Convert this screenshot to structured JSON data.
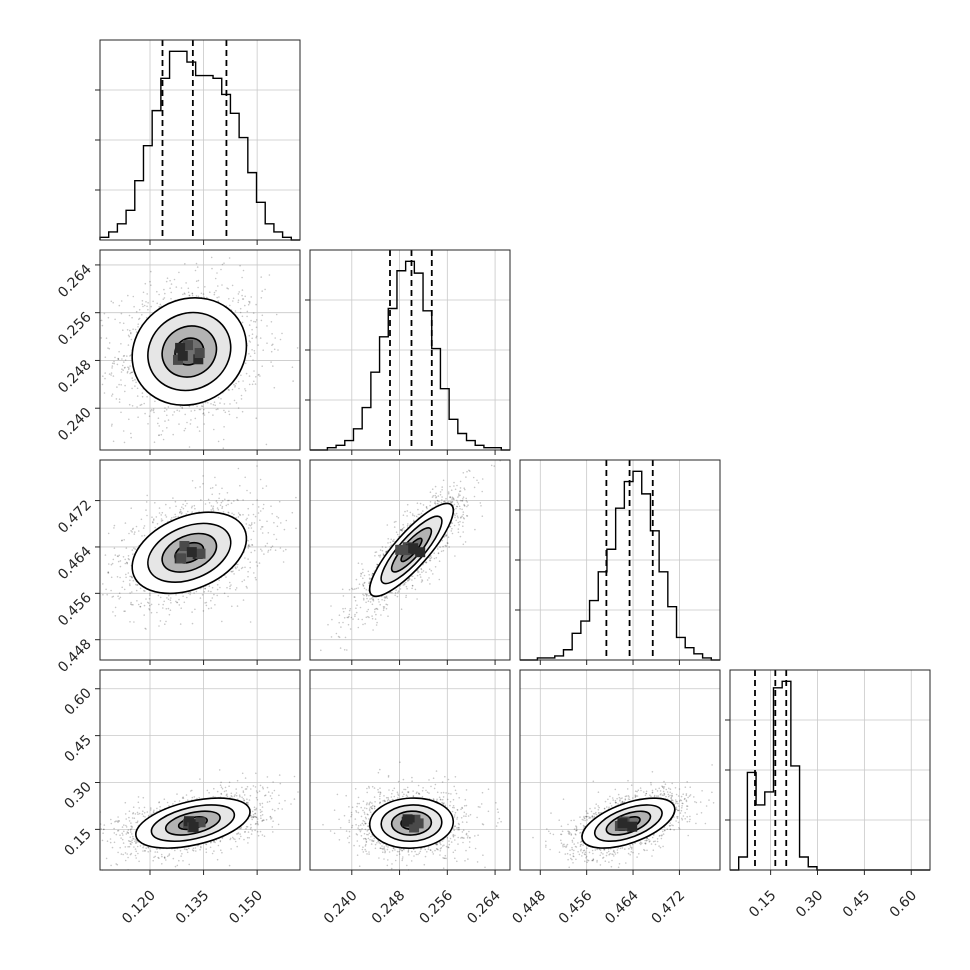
{
  "chart_data": {
    "type": "corner",
    "parameters": [
      {
        "range": [
          0.106,
          0.162
        ],
        "ticks": [
          0.12,
          0.135,
          0.15
        ],
        "tick_labels": [
          "0.120",
          "0.135",
          "0.150"
        ],
        "quantiles": [
          0.1235,
          0.132,
          0.1414
        ]
      },
      {
        "range": [
          0.233,
          0.2665
        ],
        "ticks": [
          0.24,
          0.248,
          0.256,
          0.264
        ],
        "tick_labels": [
          "0.240",
          "0.248",
          "0.256",
          "0.264"
        ],
        "quantiles": [
          0.2464,
          0.25,
          0.2534
        ]
      },
      {
        "range": [
          0.4445,
          0.479
        ],
        "ticks": [
          0.448,
          0.456,
          0.464,
          0.472
        ],
        "tick_labels": [
          "0.448",
          "0.456",
          "0.464",
          "0.472"
        ],
        "quantiles": [
          0.4594,
          0.4634,
          0.4674
        ]
      },
      {
        "range": [
          0.02,
          0.66
        ],
        "ticks": [
          0.15,
          0.3,
          0.45,
          0.6
        ],
        "tick_labels": [
          "0.15",
          "0.30",
          "0.45",
          "0.60"
        ],
        "quantiles": [
          0.1,
          0.165,
          0.2
        ]
      }
    ],
    "histograms": [
      {
        "counts": [
          1,
          3,
          6,
          11,
          22,
          35,
          48,
          60,
          70,
          70,
          66,
          61,
          61,
          60,
          54,
          47,
          38,
          25,
          14,
          6,
          3,
          1,
          0
        ]
      },
      {
        "counts": [
          0,
          0,
          1,
          2,
          4,
          9,
          18,
          33,
          48,
          60,
          76,
          80,
          75,
          59,
          43,
          26,
          13,
          7,
          4,
          2,
          1,
          1,
          0
        ]
      },
      {
        "counts": [
          0,
          0,
          1,
          1,
          2,
          5,
          13,
          19,
          29,
          43,
          54,
          74,
          87,
          92,
          81,
          63,
          43,
          26,
          11,
          6,
          3,
          1,
          0
        ]
      },
      {
        "counts": [
          0,
          2,
          15,
          10,
          12,
          28,
          29,
          16,
          2,
          0.5,
          0,
          0,
          0,
          0,
          0,
          0,
          0,
          0,
          0,
          0,
          0,
          0,
          0
        ]
      }
    ],
    "density_modes": [
      {
        "row": 1,
        "col": 0,
        "center": [
          0.131,
          0.2495
        ],
        "sigma": [
          0.008,
          0.0045
        ],
        "rho": 0.1
      },
      {
        "row": 2,
        "col": 0,
        "center": [
          0.131,
          0.463
        ],
        "sigma": [
          0.008,
          0.0035
        ],
        "rho": 0.35
      },
      {
        "row": 2,
        "col": 1,
        "center": [
          0.25,
          0.4635
        ],
        "sigma": [
          0.0035,
          0.004
        ],
        "rho": 0.85
      },
      {
        "row": 3,
        "col": 0,
        "center": [
          0.132,
          0.17
        ],
        "sigma": [
          0.008,
          0.04
        ],
        "rho": 0.45
      },
      {
        "row": 3,
        "col": 1,
        "center": [
          0.25,
          0.17
        ],
        "sigma": [
          0.0035,
          0.04
        ],
        "rho": 0.05
      },
      {
        "row": 3,
        "col": 2,
        "center": [
          0.4632,
          0.17
        ],
        "sigma": [
          0.004,
          0.04
        ],
        "rho": 0.55
      }
    ]
  }
}
